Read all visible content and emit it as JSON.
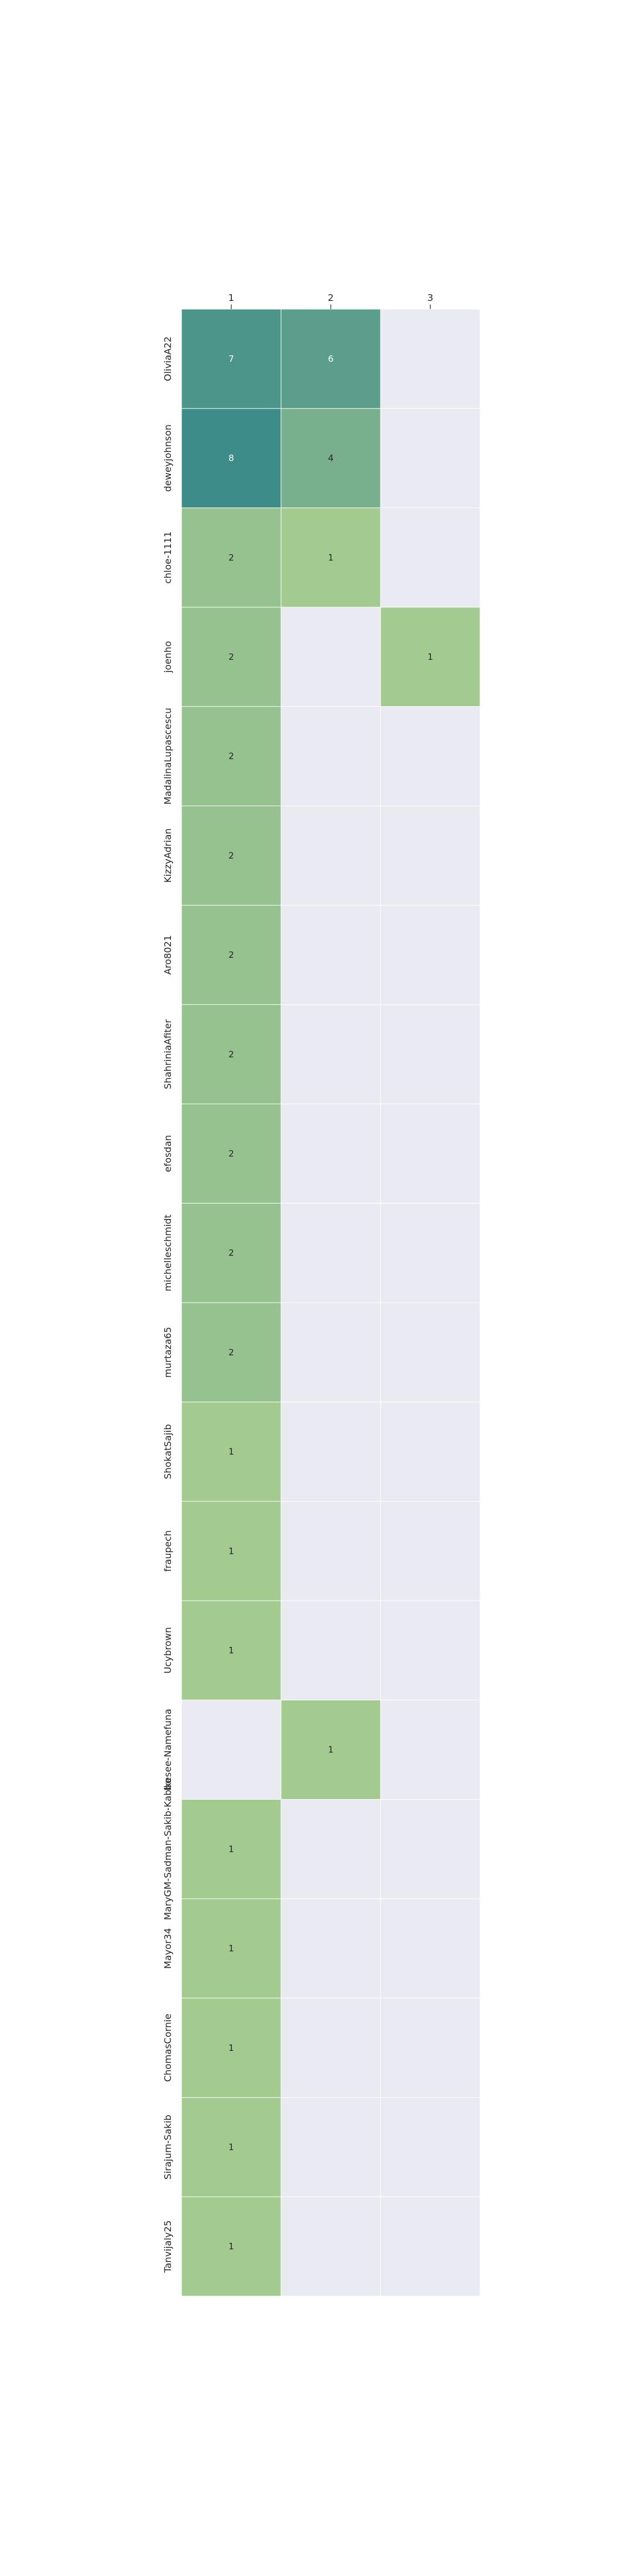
{
  "chart_data": {
    "type": "heatmap",
    "columns": [
      "1",
      "2",
      "3"
    ],
    "rows": [
      "OliviaA22",
      "deweyjohnson",
      "chloe-1111",
      "joenho",
      "MadalinaLupascescu",
      "KizzyAdrian",
      "Aro8021",
      "ShahriniaAfiter",
      "efosdan",
      "michelleschmidt",
      "murtaza65",
      "ShokatSajib",
      "fraupech",
      "Ucybrown",
      "Ikesee-Namefuna",
      "MaryGM-Sadman-Sakib-Kabbo",
      "Mayor34",
      "ChomasCornie",
      "Sirajum-Sakib",
      "Tanvijaly25"
    ],
    "values": [
      [
        7,
        6,
        null
      ],
      [
        8,
        4,
        null
      ],
      [
        2,
        1,
        null
      ],
      [
        2,
        null,
        1
      ],
      [
        2,
        null,
        null
      ],
      [
        2,
        null,
        null
      ],
      [
        2,
        null,
        null
      ],
      [
        2,
        null,
        null
      ],
      [
        2,
        null,
        null
      ],
      [
        2,
        null,
        null
      ],
      [
        2,
        null,
        null
      ],
      [
        1,
        null,
        null
      ],
      [
        1,
        null,
        null
      ],
      [
        1,
        null,
        null
      ],
      [
        null,
        1,
        null
      ],
      [
        1,
        null,
        null
      ],
      [
        1,
        null,
        null
      ],
      [
        1,
        null,
        null
      ],
      [
        1,
        null,
        null
      ],
      [
        1,
        null,
        null
      ]
    ],
    "color_scale": {
      "low": "#a3cb8f",
      "high": "#3e8c8a",
      "empty": "#eaeaf2",
      "text_dark": "#262626",
      "text_light": "#ffffff"
    },
    "colorbar": false,
    "x_axis_position": "top",
    "xlabel": "",
    "ylabel": "",
    "title": ""
  }
}
